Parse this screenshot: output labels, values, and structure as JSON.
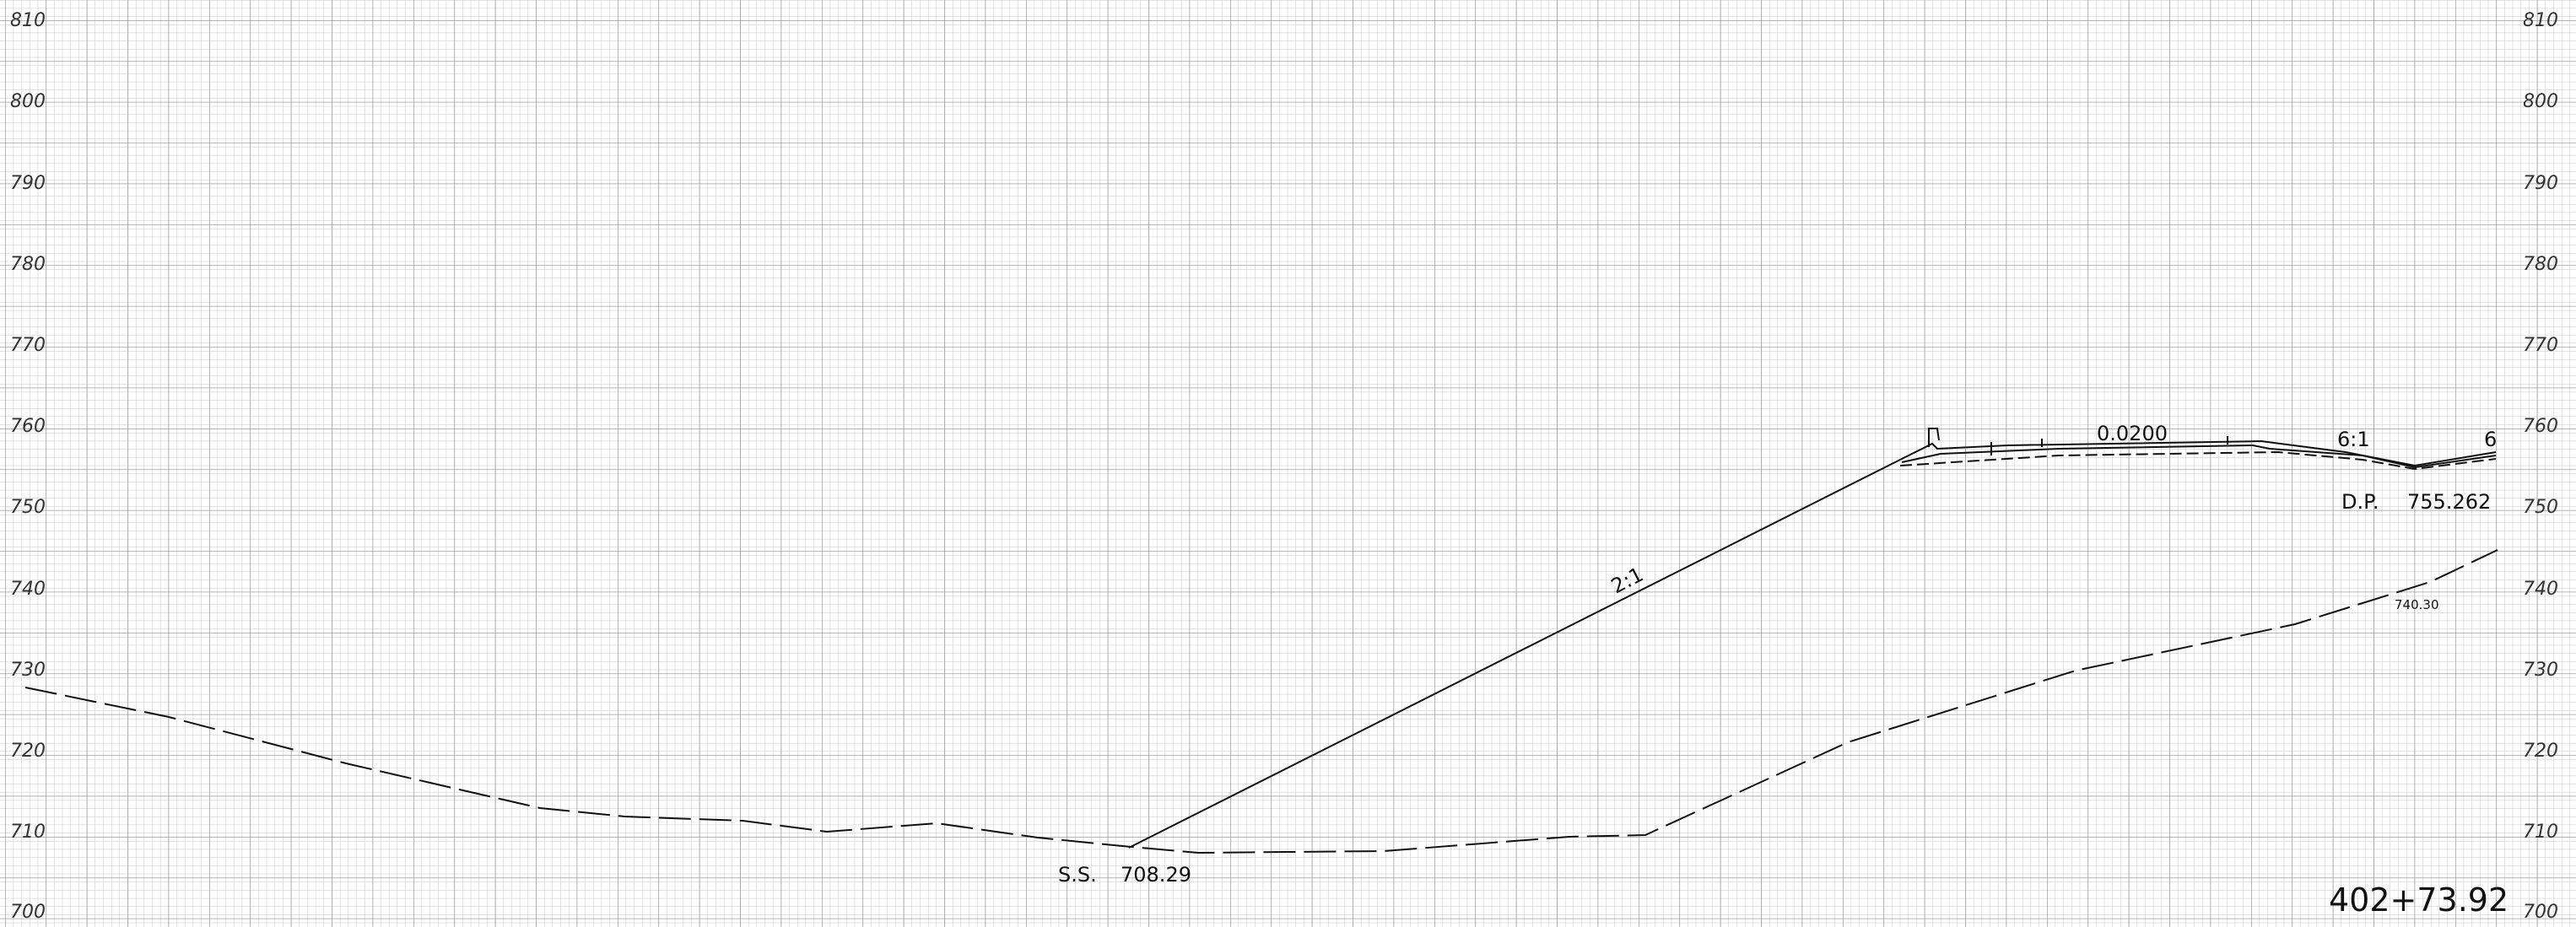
{
  "elevation_axis": {
    "min": 700,
    "max": 810,
    "step": 10,
    "labels": [
      "810",
      "800",
      "790",
      "780",
      "770",
      "760",
      "750",
      "740",
      "730",
      "720",
      "710",
      "700"
    ]
  },
  "station": "402+73.92",
  "slope_labels": {
    "cut_slope": "2:1",
    "fill_slope": "6:1",
    "right_slope": "6",
    "cross_slope": "0.0200"
  },
  "points": {
    "slope_stake": {
      "label": "S.S.",
      "elevation": "708.29"
    },
    "design_point": {
      "label": "D.P.",
      "elevation": "755.262"
    },
    "existing_ground": {
      "label": "740.30"
    }
  },
  "colors": {
    "grid_minor": "#bdbdbd",
    "grid_major": "#7a7a7a",
    "line": "#111111"
  }
}
